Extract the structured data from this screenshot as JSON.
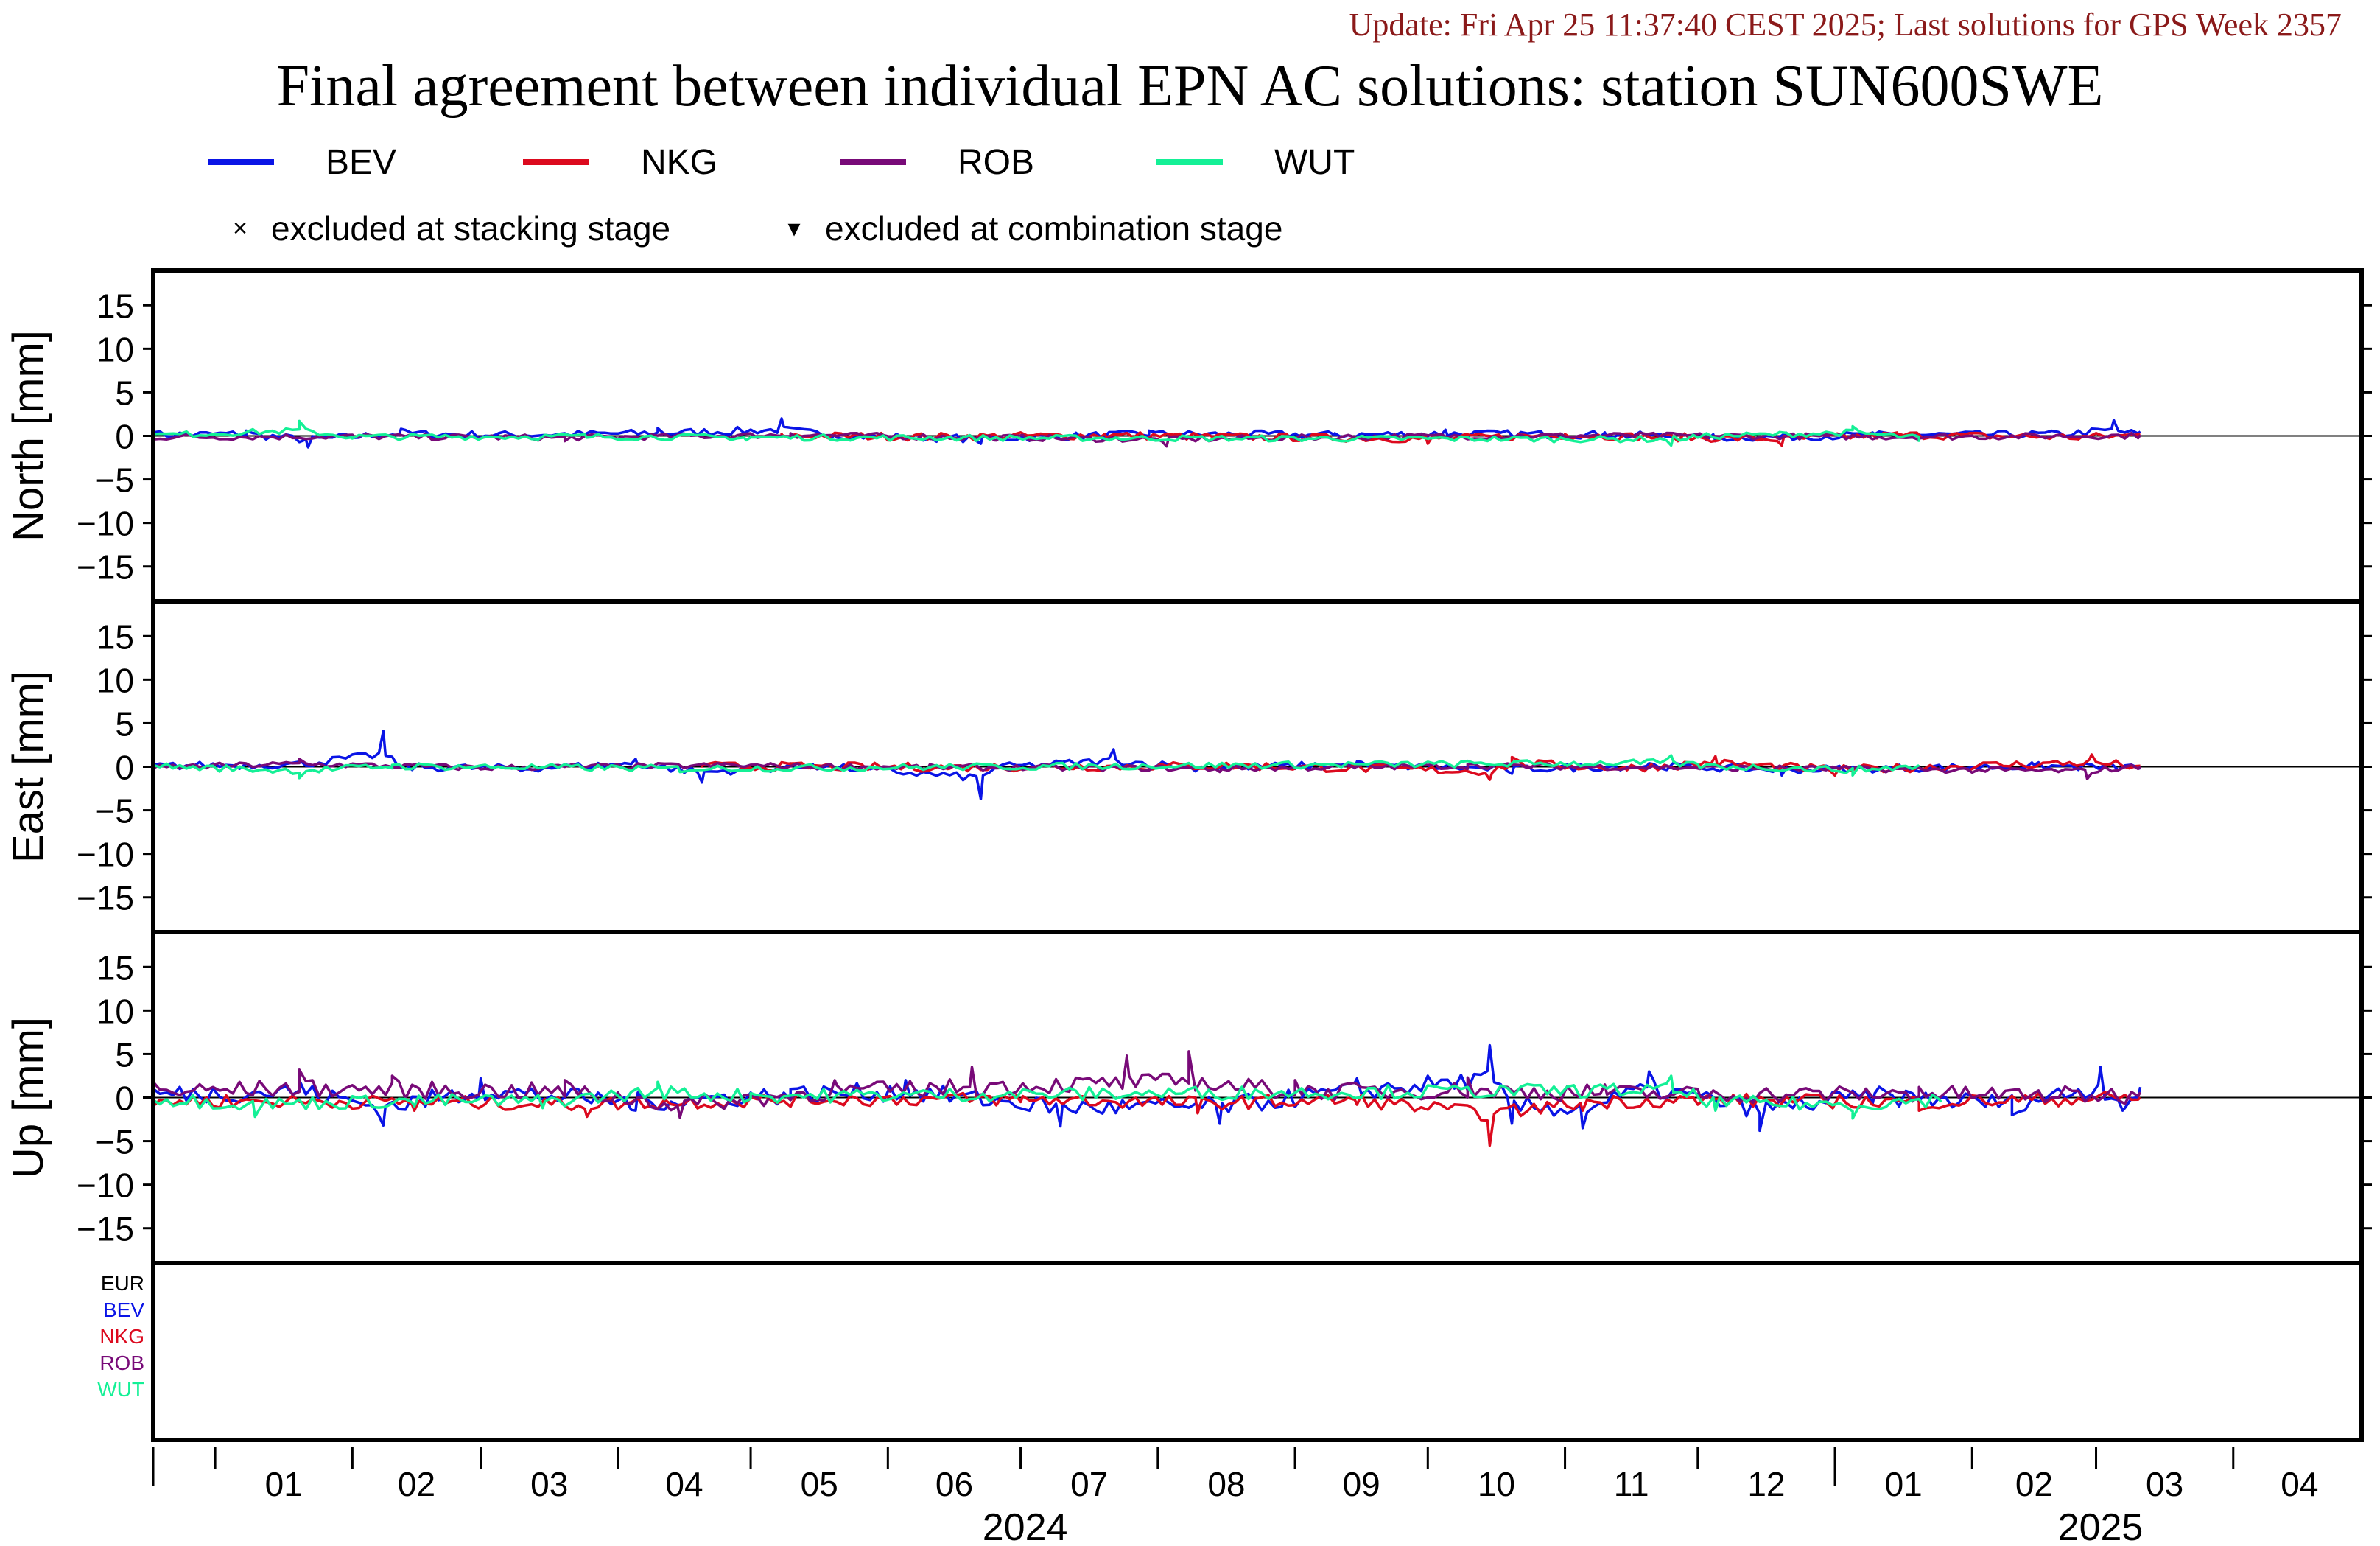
{
  "update_text": "Update: Fri Apr 25 11:37:40 CEST 2025; Last solutions for GPS Week 2357",
  "title": "Final agreement between individual EPN AC solutions: station SUN600SWE",
  "legend": {
    "series": [
      {
        "name": "BEV",
        "color": "#0a14e6"
      },
      {
        "name": "NKG",
        "color": "#dc0a1e"
      },
      {
        "name": "ROB",
        "color": "#780a78"
      },
      {
        "name": "WUT",
        "color": "#14f096"
      }
    ],
    "markers": [
      {
        "symbol": "×",
        "label": "excluded at stacking stage"
      },
      {
        "symbol": "▾",
        "label": "excluded at combination stage"
      }
    ]
  },
  "chart_data": {
    "type": "line",
    "x_unit": "date",
    "x_range": [
      "2023-12-18",
      "2025-04-30"
    ],
    "x_ticks": [
      "01",
      "02",
      "03",
      "04",
      "05",
      "06",
      "07",
      "08",
      "09",
      "10",
      "11",
      "12",
      "01",
      "02",
      "03",
      "04"
    ],
    "year_labels": [
      "2024",
      "2025"
    ],
    "grid": false,
    "legend_position": "top",
    "panels": [
      {
        "ylabel": "North [mm]",
        "ylim": [
          -19,
          19
        ],
        "yticks": [
          "15",
          "10",
          "5",
          "0",
          "−5",
          "−10",
          "−15"
        ],
        "series": [
          {
            "name": "BEV",
            "points": [
              [
                "2023-12-18",
                0.4
              ],
              [
                "2024-01-08",
                0.6
              ],
              [
                "2024-01-22",
                -1.3
              ],
              [
                "2024-02-12",
                0.8
              ],
              [
                "2024-03-05",
                0.3
              ],
              [
                "2024-04-10",
                0.9
              ],
              [
                "2024-05-08",
                2.0
              ],
              [
                "2024-05-20",
                0.1
              ],
              [
                "2024-06-22",
                -0.9
              ],
              [
                "2024-07-30",
                0.6
              ],
              [
                "2024-09-10",
                0.3
              ],
              [
                "2024-10-05",
                0.7
              ],
              [
                "2024-11-10",
                0.4
              ],
              [
                "2024-12-05",
                -0.6
              ],
              [
                "2025-01-10",
                0.2
              ],
              [
                "2025-02-20",
                0.5
              ],
              [
                "2025-03-05",
                1.8
              ],
              [
                "2025-03-11",
                0.5
              ]
            ]
          },
          {
            "name": "NKG",
            "points": [
              [
                "2024-05-08",
                0.1
              ],
              [
                "2024-06-10",
                -0.3
              ],
              [
                "2024-07-20",
                0.2
              ],
              [
                "2024-08-25",
                -0.4
              ],
              [
                "2024-10-01",
                -0.9
              ],
              [
                "2024-11-01",
                0.2
              ],
              [
                "2024-12-20",
                -1.1
              ],
              [
                "2025-01-15",
                0.3
              ],
              [
                "2025-02-25",
                -0.4
              ],
              [
                "2025-03-11",
                0.2
              ]
            ]
          },
          {
            "name": "ROB",
            "points": [
              [
                "2023-12-18",
                -0.4
              ],
              [
                "2024-02-01",
                -0.2
              ],
              [
                "2024-03-20",
                -0.6
              ],
              [
                "2024-05-10",
                0.3
              ],
              [
                "2024-06-25",
                -0.5
              ],
              [
                "2024-08-03",
                -1.2
              ],
              [
                "2024-09-20",
                -0.2
              ],
              [
                "2024-11-15",
                0.1
              ],
              [
                "2025-01-20",
                -0.3
              ],
              [
                "2025-03-11",
                0.1
              ]
            ]
          },
          {
            "name": "WUT",
            "points": [
              [
                "2023-12-18",
                0.2
              ],
              [
                "2024-01-20",
                1.7
              ],
              [
                "2024-02-01",
                -0.3
              ],
              [
                "2024-03-25",
                -0.2
              ],
              [
                "2024-04-30",
                -0.5
              ],
              [
                "2024-11-25",
                -1.1
              ],
              [
                "2024-12-01",
                -0.2
              ],
              [
                "2025-01-05",
                1.1
              ],
              [
                "2025-01-20",
                -0.7
              ]
            ]
          }
        ]
      },
      {
        "ylabel": "East [mm]",
        "ylim": [
          -19,
          19
        ],
        "yticks": [
          "15",
          "10",
          "5",
          "0",
          "−5",
          "−10",
          "−15"
        ],
        "series": [
          {
            "name": "BEV",
            "points": [
              [
                "2023-12-18",
                0.2
              ],
              [
                "2024-01-20",
                0.8
              ],
              [
                "2024-02-08",
                4.1
              ],
              [
                "2024-02-12",
                -0.1
              ],
              [
                "2024-03-10",
                -0.5
              ],
              [
                "2024-04-05",
                0.9
              ],
              [
                "2024-04-20",
                -1.8
              ],
              [
                "2024-05-15",
                0.3
              ],
              [
                "2024-06-22",
                -3.7
              ],
              [
                "2024-06-25",
                -0.2
              ],
              [
                "2024-07-22",
                2.0
              ],
              [
                "2024-08-10",
                -0.3
              ],
              [
                "2024-09-15",
                0.6
              ],
              [
                "2024-10-20",
                -0.8
              ],
              [
                "2024-11-20",
                0.4
              ],
              [
                "2024-12-20",
                -1.0
              ],
              [
                "2025-02-15",
                0.2
              ],
              [
                "2025-03-11",
                -0.2
              ]
            ]
          },
          {
            "name": "NKG",
            "points": [
              [
                "2024-04-20",
                0.2
              ],
              [
                "2024-06-15",
                -0.2
              ],
              [
                "2024-08-20",
                0.3
              ],
              [
                "2024-10-15",
                -1.5
              ],
              [
                "2024-10-20",
                1.1
              ],
              [
                "2024-11-15",
                -0.4
              ],
              [
                "2024-12-05",
                1.2
              ],
              [
                "2025-01-01",
                -1.0
              ],
              [
                "2025-02-28",
                1.4
              ],
              [
                "2025-03-11",
                0.1
              ]
            ]
          },
          {
            "name": "ROB",
            "points": [
              [
                "2023-12-18",
                -0.2
              ],
              [
                "2024-01-20",
                0.9
              ],
              [
                "2024-03-01",
                -0.3
              ],
              [
                "2024-04-25",
                0.4
              ],
              [
                "2024-06-10",
                -0.2
              ],
              [
                "2024-08-15",
                -0.6
              ],
              [
                "2024-10-10",
                0.3
              ],
              [
                "2024-12-10",
                -0.4
              ],
              [
                "2025-02-27",
                -1.4
              ],
              [
                "2025-03-11",
                0.0
              ]
            ]
          },
          {
            "name": "WUT",
            "points": [
              [
                "2023-12-18",
                0.2
              ],
              [
                "2024-01-20",
                -1.3
              ],
              [
                "2024-02-10",
                0.2
              ],
              [
                "2024-04-15",
                -0.6
              ],
              [
                "2024-11-25",
                1.3
              ],
              [
                "2024-12-01",
                0.3
              ],
              [
                "2025-01-05",
                -1.0
              ],
              [
                "2025-01-20",
                0.2
              ]
            ]
          }
        ]
      },
      {
        "ylabel": "Up [mm]",
        "ylim": [
          -19,
          19
        ],
        "yticks": [
          "15",
          "10",
          "5",
          "0",
          "−5",
          "−10",
          "−15"
        ],
        "series": [
          {
            "name": "BEV",
            "points": [
              [
                "2023-12-18",
                1.0
              ],
              [
                "2024-01-20",
                2.0
              ],
              [
                "2024-02-08",
                -3.2
              ],
              [
                "2024-03-01",
                2.2
              ],
              [
                "2024-04-05",
                -1.5
              ],
              [
                "2024-05-10",
                1.0
              ],
              [
                "2024-06-05",
                2.0
              ],
              [
                "2024-07-10",
                -3.3
              ],
              [
                "2024-08-15",
                -3.0
              ],
              [
                "2024-09-15",
                2.2
              ],
              [
                "2024-10-15",
                6.0
              ],
              [
                "2024-10-20",
                -3.0
              ],
              [
                "2024-11-05",
                -3.5
              ],
              [
                "2024-11-20",
                3.0
              ],
              [
                "2024-12-15",
                -3.8
              ],
              [
                "2025-01-10",
                0.5
              ],
              [
                "2025-02-10",
                -2.0
              ],
              [
                "2025-03-02",
                3.5
              ],
              [
                "2025-03-07",
                -1.5
              ],
              [
                "2025-03-11",
                1.2
              ]
            ]
          },
          {
            "name": "NKG",
            "points": [
              [
                "2023-12-18",
                -1.0
              ],
              [
                "2024-02-15",
                -1.5
              ],
              [
                "2024-03-25",
                -2.2
              ],
              [
                "2024-05-15",
                -0.6
              ],
              [
                "2024-07-01",
                -0.5
              ],
              [
                "2024-08-10",
                -1.8
              ],
              [
                "2024-09-15",
                -0.8
              ],
              [
                "2024-10-15",
                -5.5
              ],
              [
                "2024-11-05",
                -1.5
              ],
              [
                "2024-12-01",
                -0.8
              ],
              [
                "2025-01-20",
                -1.5
              ],
              [
                "2025-03-11",
                0.0
              ]
            ]
          },
          {
            "name": "ROB",
            "points": [
              [
                "2023-12-18",
                1.8
              ],
              [
                "2024-01-20",
                3.2
              ],
              [
                "2024-02-10",
                2.5
              ],
              [
                "2024-03-20",
                2.0
              ],
              [
                "2024-04-15",
                -2.3
              ],
              [
                "2024-05-20",
                2.0
              ],
              [
                "2024-06-20",
                3.5
              ],
              [
                "2024-07-25",
                4.8
              ],
              [
                "2024-08-08",
                5.3
              ],
              [
                "2024-09-01",
                2.0
              ],
              [
                "2024-10-10",
                2.3
              ],
              [
                "2024-11-10",
                1.5
              ],
              [
                "2024-12-01",
                1.0
              ],
              [
                "2025-01-20",
                1.2
              ],
              [
                "2025-03-11",
                0.6
              ]
            ]
          },
          {
            "name": "WUT",
            "points": [
              [
                "2023-12-18",
                -0.3
              ],
              [
                "2024-01-10",
                -2.2
              ],
              [
                "2024-02-15",
                -1.0
              ],
              [
                "2024-03-15",
                -1.2
              ],
              [
                "2024-04-10",
                1.8
              ],
              [
                "2024-05-01",
                0.5
              ],
              [
                "2024-11-25",
                2.5
              ],
              [
                "2024-12-05",
                -1.5
              ],
              [
                "2025-01-05",
                -2.4
              ],
              [
                "2025-01-25",
                -0.5
              ]
            ]
          }
        ]
      }
    ],
    "fourth_panel_labels": [
      {
        "text": "EUR",
        "color": "#000000"
      },
      {
        "text": "BEV",
        "color": "#0a14e6"
      },
      {
        "text": "NKG",
        "color": "#dc0a1e"
      },
      {
        "text": "ROB",
        "color": "#780a78"
      },
      {
        "text": "WUT",
        "color": "#14f096"
      }
    ]
  }
}
